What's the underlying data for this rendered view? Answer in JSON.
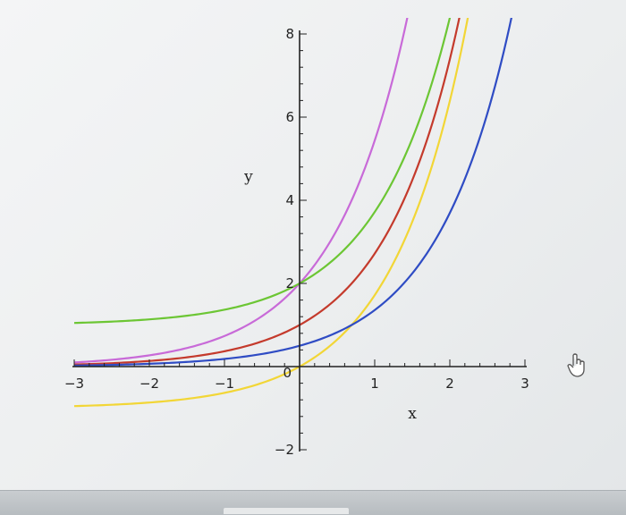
{
  "chart_data": {
    "type": "line",
    "xlabel": "x",
    "ylabel": "y",
    "xlim": [
      -3,
      3
    ],
    "ylim": [
      -2,
      8
    ],
    "x_ticks": [
      {
        "value": -3,
        "label": "−3"
      },
      {
        "value": -2,
        "label": "−2"
      },
      {
        "value": -1,
        "label": "−1"
      },
      {
        "value": 1,
        "label": "1"
      },
      {
        "value": 2,
        "label": "2"
      },
      {
        "value": 3,
        "label": "3"
      }
    ],
    "y_ticks": [
      {
        "value": -2,
        "label": "−2"
      },
      {
        "value": 2,
        "label": "2"
      },
      {
        "value": 4,
        "label": "4"
      },
      {
        "value": 6,
        "label": "6"
      },
      {
        "value": 8,
        "label": "8"
      }
    ],
    "origin_label": "0",
    "series": [
      {
        "color": "#c86ad8",
        "formula": "2*exp(x)",
        "x_range": [
          -3,
          2.25
        ]
      },
      {
        "color": "#6cc634",
        "formula": "exp(x)+1",
        "x_range": [
          -3,
          3.05
        ]
      },
      {
        "color": "#c43a2c",
        "formula": "exp(x)",
        "x_range": [
          -3,
          3.2
        ]
      },
      {
        "color": "#f2d636",
        "formula": "exp(x)-1",
        "x_range": [
          -3,
          3.2
        ]
      },
      {
        "color": "#2f4cc4",
        "formula": "exp(x)/2",
        "x_range": [
          -3,
          3.1
        ]
      }
    ]
  },
  "ui": {
    "cursor_icon": "hand-pointer-icon"
  }
}
